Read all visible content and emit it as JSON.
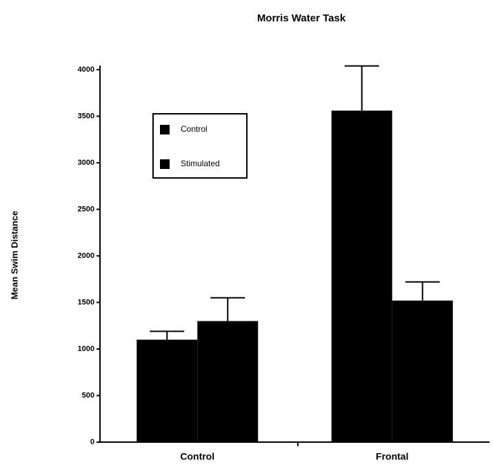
{
  "chart_data": {
    "type": "bar",
    "title": "Morris Water Task",
    "y_label": "Mean Swim Distance",
    "categories": [
      "Control",
      "Frontal"
    ],
    "series": [
      {
        "name": "Control",
        "color": "#000000",
        "values": [
          1100,
          3560
        ],
        "errors": [
          90,
          480
        ]
      },
      {
        "name": "Stimulated",
        "color": "#000000",
        "values": [
          1300,
          1520
        ],
        "errors": [
          250,
          200
        ]
      }
    ],
    "ylim": [
      0,
      4000
    ],
    "yticks": [
      0,
      500,
      1000,
      1500,
      2000,
      2500,
      3000,
      3500,
      4000
    ],
    "grid": false
  }
}
